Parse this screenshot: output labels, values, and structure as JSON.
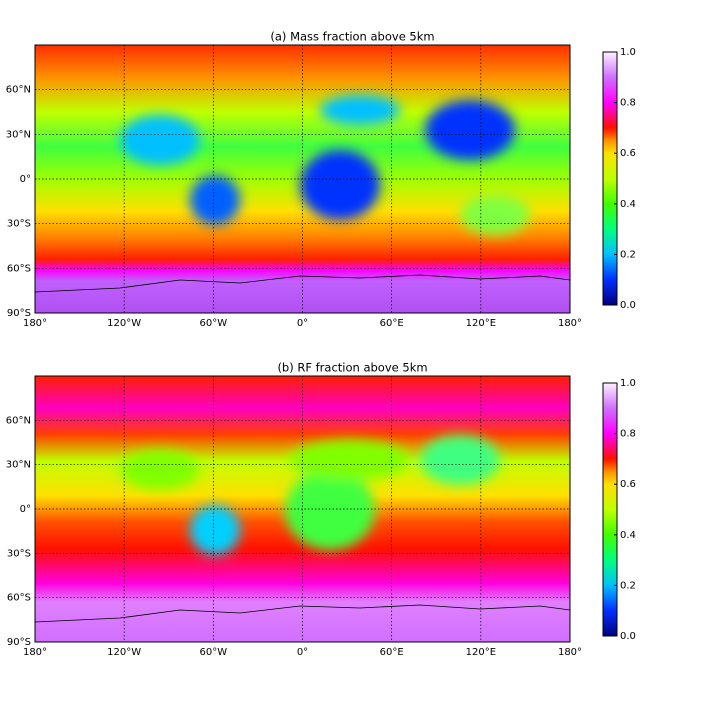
{
  "chart_data": [
    {
      "type": "map",
      "title": "(a) Mass fraction above 5km",
      "colormap": "gist_ncar",
      "grid": true,
      "xlim": [
        -180,
        180
      ],
      "xticks": [
        {
          "value": -180,
          "label": "180°"
        },
        {
          "value": -120,
          "label": "120°W"
        },
        {
          "value": -60,
          "label": "60°W"
        },
        {
          "value": 0,
          "label": "0°"
        },
        {
          "value": 60,
          "label": "60°E"
        },
        {
          "value": 120,
          "label": "120°E"
        },
        {
          "value": 180,
          "label": "180°"
        }
      ],
      "ylim": [
        -90,
        90
      ],
      "yticks": [
        {
          "value": -90,
          "label": "90°S"
        },
        {
          "value": -60,
          "label": "60°S"
        },
        {
          "value": -30,
          "label": "30°S"
        },
        {
          "value": 0,
          "label": "0°"
        },
        {
          "value": 30,
          "label": "30°N"
        },
        {
          "value": 60,
          "label": "60°N"
        }
      ],
      "clim": [
        0,
        1
      ],
      "cticks": [
        {
          "value": 0,
          "label": "0.0"
        },
        {
          "value": 0.2,
          "label": "0.2"
        },
        {
          "value": 0.4,
          "label": "0.4"
        },
        {
          "value": 0.6,
          "label": "0.6"
        },
        {
          "value": 0.8,
          "label": "0.8"
        },
        {
          "value": 1,
          "label": "1.0"
        }
      ]
    },
    {
      "type": "map",
      "title": "(b) RF fraction above 5km",
      "colormap": "gist_ncar",
      "grid": true,
      "xlim": [
        -180,
        180
      ],
      "xticks": [
        {
          "value": -180,
          "label": "180°"
        },
        {
          "value": -120,
          "label": "120°W"
        },
        {
          "value": -60,
          "label": "60°W"
        },
        {
          "value": 0,
          "label": "0°"
        },
        {
          "value": 60,
          "label": "60°E"
        },
        {
          "value": 120,
          "label": "120°E"
        },
        {
          "value": 180,
          "label": "180°"
        }
      ],
      "ylim": [
        -90,
        90
      ],
      "yticks": [
        {
          "value": -90,
          "label": "90°S"
        },
        {
          "value": -60,
          "label": "60°S"
        },
        {
          "value": -30,
          "label": "30°S"
        },
        {
          "value": 0,
          "label": "0°"
        },
        {
          "value": 30,
          "label": "30°N"
        },
        {
          "value": 60,
          "label": "60°N"
        }
      ],
      "clim": [
        0,
        1
      ],
      "cticks": [
        {
          "value": 0,
          "label": "0.0"
        },
        {
          "value": 0.2,
          "label": "0.2"
        },
        {
          "value": 0.4,
          "label": "0.4"
        },
        {
          "value": 0.6,
          "label": "0.6"
        },
        {
          "value": 0.8,
          "label": "0.8"
        },
        {
          "value": 1,
          "label": "1.0"
        }
      ]
    }
  ]
}
